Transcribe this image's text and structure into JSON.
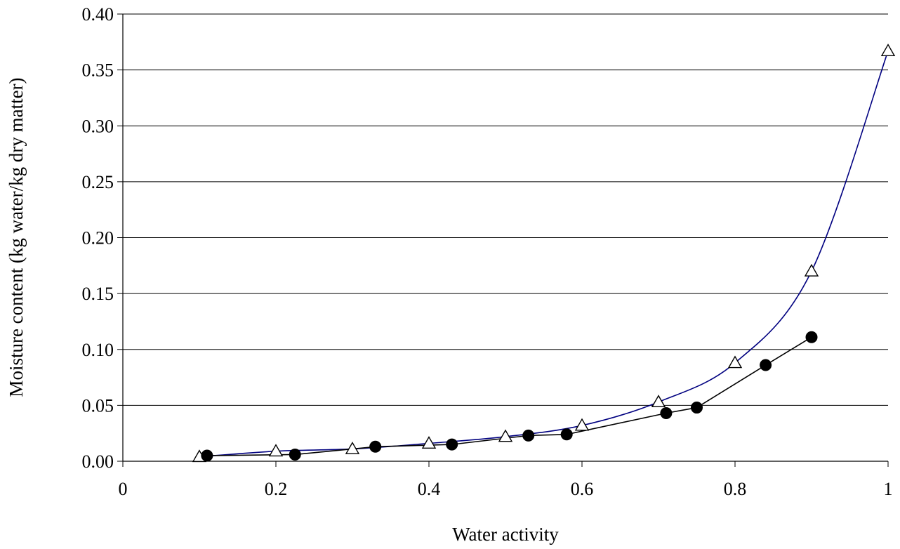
{
  "chart_data": {
    "type": "scatter",
    "title": "",
    "xlabel": "Water activity",
    "ylabel": "Moisture content (kg water/kg dry matter)",
    "xlim": [
      0,
      1
    ],
    "ylim": [
      0,
      0.4
    ],
    "xticks": [
      0,
      0.2,
      0.4,
      0.6,
      0.8,
      1
    ],
    "xtick_labels": [
      "0",
      "0.2",
      "0.4",
      "0.6",
      "0.8",
      "1"
    ],
    "yticks": [
      0,
      0.05,
      0.1,
      0.15,
      0.2,
      0.25,
      0.3,
      0.35,
      0.4
    ],
    "ytick_labels": [
      "0.00",
      "0.05",
      "0.10",
      "0.15",
      "0.20",
      "0.25",
      "0.30",
      "0.35",
      "0.40"
    ],
    "grid": "horizontal",
    "legend": "none",
    "series": [
      {
        "marker": "triangle-open",
        "line": "smooth",
        "line_color": "#000080",
        "x": [
          0.1,
          0.2,
          0.3,
          0.4,
          0.5,
          0.6,
          0.7,
          0.8,
          0.9,
          1.0
        ],
        "y": [
          0.004,
          0.009,
          0.011,
          0.016,
          0.022,
          0.032,
          0.053,
          0.088,
          0.17,
          0.367
        ]
      },
      {
        "marker": "circle-filled",
        "line": "straight",
        "line_color": "#000000",
        "x": [
          0.11,
          0.225,
          0.33,
          0.43,
          0.53,
          0.58,
          0.71,
          0.75,
          0.84,
          0.9
        ],
        "y": [
          0.005,
          0.006,
          0.013,
          0.015,
          0.023,
          0.024,
          0.043,
          0.048,
          0.086,
          0.111
        ]
      }
    ]
  }
}
